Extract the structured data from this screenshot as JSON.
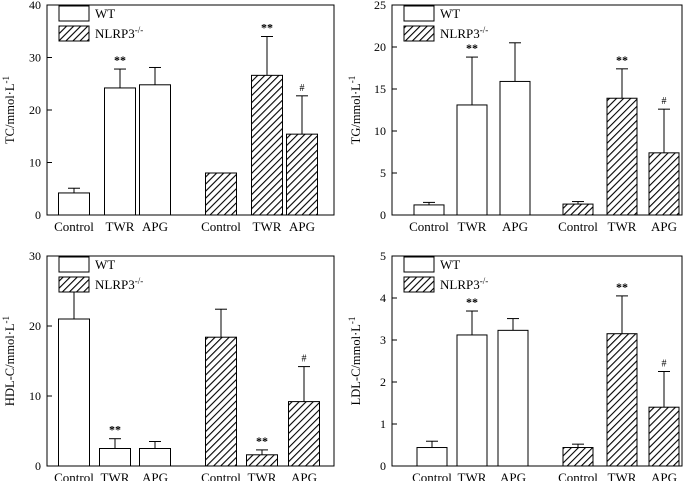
{
  "chart_data": [
    {
      "type": "bar",
      "panel": "TC",
      "ylabel": "TC/mmol·L",
      "ylabel_sup": "-1",
      "ylim": [
        0,
        40
      ],
      "yticks": [
        0,
        10,
        20,
        30,
        40
      ],
      "categories": [
        "Control",
        "TWR",
        "APG"
      ],
      "legend": [
        "WT",
        "NLRP3-/-"
      ],
      "series": [
        {
          "name": "WT",
          "values": [
            4.2,
            24.2,
            24.8
          ],
          "errors": [
            0.9,
            3.6,
            3.3
          ],
          "marks": [
            "",
            "**",
            ""
          ]
        },
        {
          "name": "NLRP3-/-",
          "values": [
            8.0,
            26.6,
            15.4
          ],
          "errors": [
            0.0,
            7.4,
            7.3
          ],
          "marks": [
            "",
            "**",
            "#"
          ]
        }
      ]
    },
    {
      "type": "bar",
      "panel": "TG",
      "ylabel": "TG/mmol·L",
      "ylabel_sup": "-1",
      "ylim": [
        0,
        25
      ],
      "yticks": [
        0,
        5,
        10,
        15,
        20,
        25
      ],
      "categories": [
        "Control",
        "TWR",
        "APG"
      ],
      "legend": [
        "WT",
        "NLRP3-/-"
      ],
      "series": [
        {
          "name": "WT",
          "values": [
            1.2,
            13.1,
            15.9
          ],
          "errors": [
            0.3,
            5.7,
            4.6
          ],
          "marks": [
            "",
            "**",
            ""
          ]
        },
        {
          "name": "NLRP3-/-",
          "values": [
            1.3,
            13.9,
            7.4
          ],
          "errors": [
            0.3,
            3.5,
            5.2
          ],
          "marks": [
            "",
            "**",
            "#"
          ]
        }
      ]
    },
    {
      "type": "bar",
      "panel": "HDL-C",
      "ylabel": "HDL-C/mmol·L",
      "ylabel_sup": "-1",
      "ylim": [
        0,
        30
      ],
      "yticks": [
        0,
        10,
        20,
        30
      ],
      "categories": [
        "Control",
        "TWR",
        "APG"
      ],
      "legend": [
        "WT",
        "NLRP3-/-"
      ],
      "series": [
        {
          "name": "WT",
          "values": [
            21.0,
            2.5,
            2.5
          ],
          "errors": [
            5.1,
            1.4,
            1.0
          ],
          "marks": [
            "",
            "**",
            ""
          ]
        },
        {
          "name": "NLRP3-/-",
          "values": [
            18.4,
            1.6,
            9.2
          ],
          "errors": [
            4.0,
            0.7,
            5.0
          ],
          "marks": [
            "",
            "**",
            "#"
          ]
        }
      ]
    },
    {
      "type": "bar",
      "panel": "LDL-C",
      "ylabel": "LDL-C/mmol·L",
      "ylabel_sup": "-1",
      "ylim": [
        0,
        5
      ],
      "yticks": [
        0,
        1,
        2,
        3,
        4,
        5
      ],
      "categories": [
        "Control",
        "TWR",
        "APG"
      ],
      "legend": [
        "WT",
        "NLRP3-/-"
      ],
      "series": [
        {
          "name": "WT",
          "values": [
            0.44,
            3.12,
            3.23
          ],
          "errors": [
            0.15,
            0.57,
            0.28
          ],
          "marks": [
            "",
            "**",
            ""
          ]
        },
        {
          "name": "NLRP3-/-",
          "values": [
            0.44,
            3.15,
            1.4
          ],
          "errors": [
            0.08,
            0.9,
            0.85
          ],
          "marks": [
            "",
            "**",
            "#"
          ]
        }
      ]
    }
  ]
}
